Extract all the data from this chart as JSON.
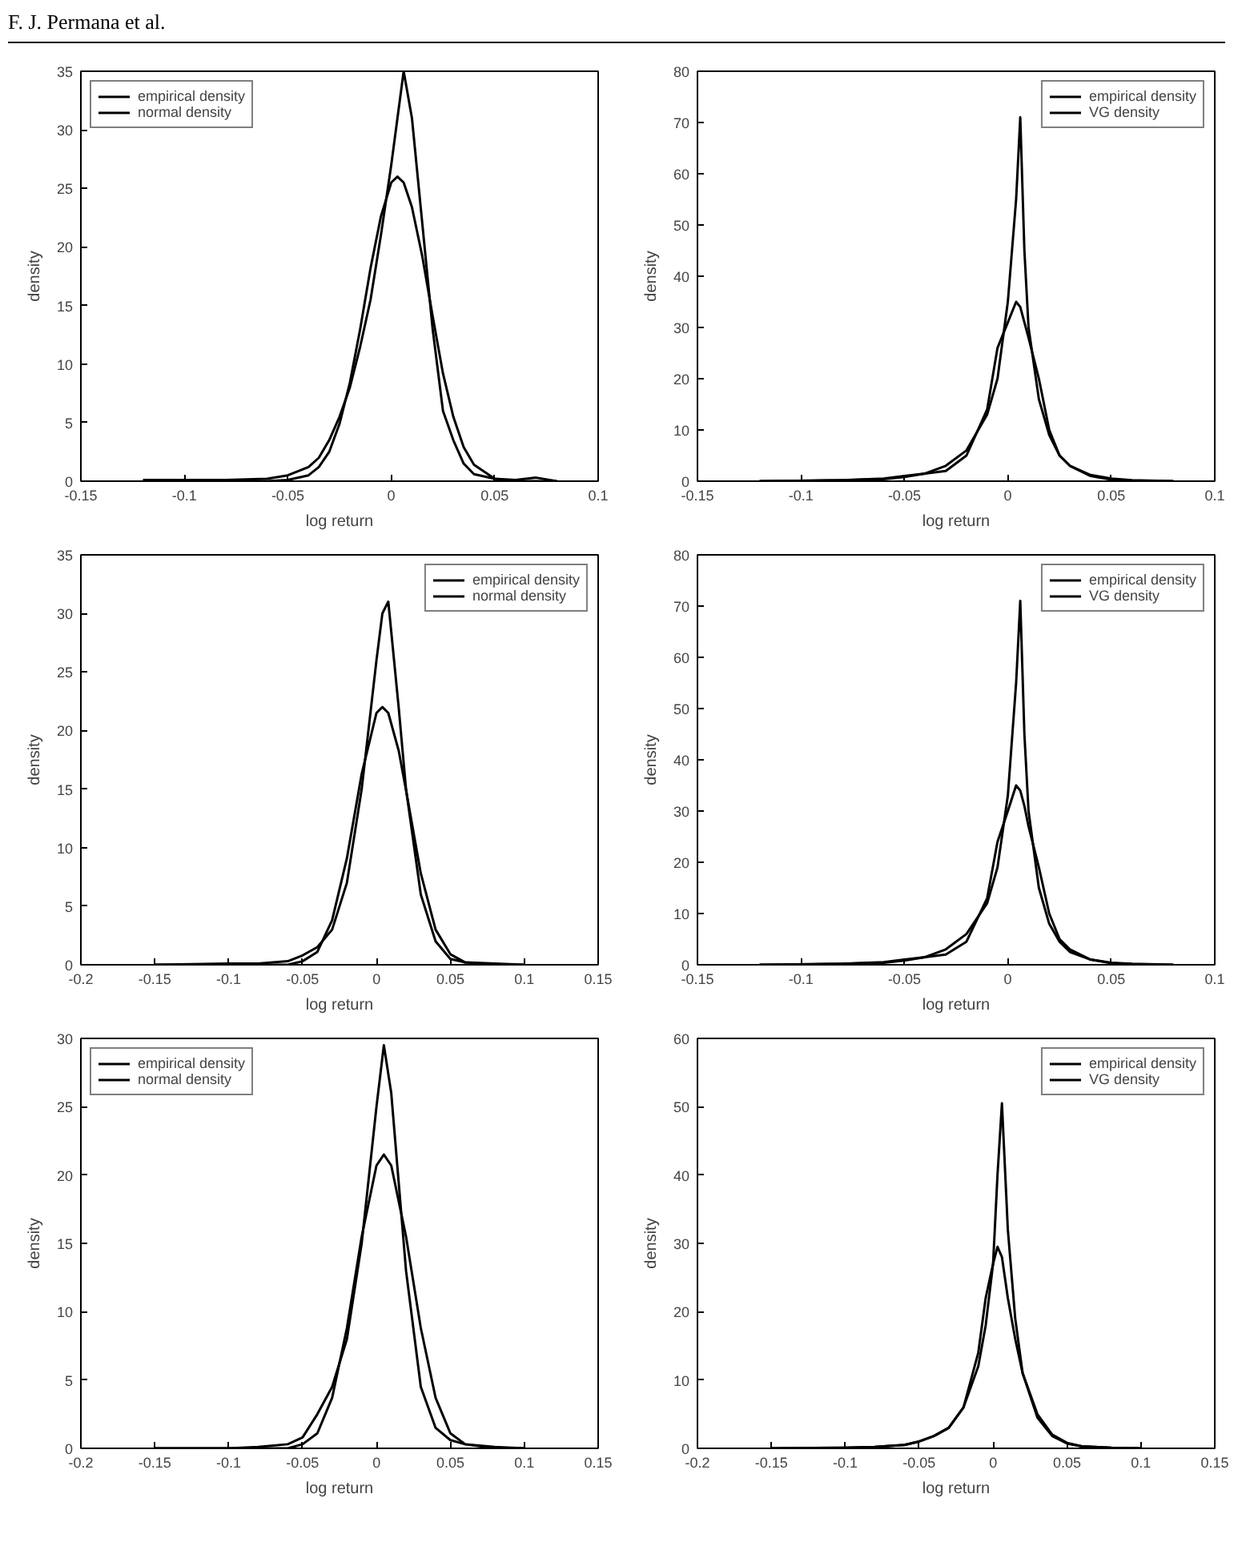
{
  "chart_data": [
    {
      "type": "line",
      "annotations": [
        "F. J. Permana et al."
      ],
      "xlabel": "log return",
      "ylabel": "density",
      "legend": "top left",
      "grid": false,
      "xlim": [
        -0.15,
        0.1
      ],
      "ylim": [
        0,
        35
      ],
      "xticks": [
        -0.15,
        -0.1,
        -0.05,
        0,
        0.05,
        0.1
      ],
      "yticks": [
        0,
        5,
        10,
        15,
        20,
        25,
        30,
        35
      ],
      "x": [
        -0.12,
        -0.08,
        -0.06,
        -0.05,
        -0.04,
        -0.035,
        -0.03,
        -0.025,
        -0.02,
        -0.015,
        -0.01,
        -0.005,
        0,
        0.003,
        0.006,
        0.01,
        0.015,
        0.02,
        0.025,
        0.03,
        0.035,
        0.04,
        0.05,
        0.06,
        0.07,
        0.08
      ],
      "series": [
        {
          "name": "empirical density",
          "color": "#000000",
          "values": [
            0.1,
            0.1,
            0.2,
            0.5,
            1.2,
            2,
            3.5,
            5.5,
            8,
            11.5,
            15.5,
            21,
            27,
            31,
            35,
            31,
            22,
            13,
            6,
            3.5,
            1.5,
            0.6,
            0.2,
            0.1,
            0.3,
            0
          ]
        },
        {
          "name": "normal density",
          "color": "#000000",
          "values": [
            0,
            0,
            0,
            0.1,
            0.5,
            1.2,
            2.5,
            4.9,
            8.4,
            13,
            18.2,
            22.6,
            25.5,
            26,
            25.5,
            23.4,
            19.2,
            14.1,
            9.2,
            5.5,
            2.9,
            1.4,
            0.2,
            0,
            0,
            0
          ]
        }
      ]
    },
    {
      "type": "line",
      "xlabel": "log return",
      "ylabel": "density",
      "legend": "top right",
      "grid": false,
      "xlim": [
        -0.15,
        0.1
      ],
      "ylim": [
        0,
        80
      ],
      "xticks": [
        -0.15,
        -0.1,
        -0.05,
        0,
        0.05,
        0.1
      ],
      "yticks": [
        0,
        10,
        20,
        30,
        40,
        50,
        60,
        70,
        80
      ],
      "x": [
        -0.12,
        -0.08,
        -0.06,
        -0.05,
        -0.04,
        -0.03,
        -0.02,
        -0.01,
        -0.005,
        0,
        0.004,
        0.006,
        0.008,
        0.01,
        0.015,
        0.02,
        0.025,
        0.03,
        0.04,
        0.05,
        0.06,
        0.08
      ],
      "series": [
        {
          "name": "empirical density",
          "color": "#000000",
          "values": [
            0,
            0.2,
            0.5,
            1,
            1.5,
            2,
            5,
            14,
            26,
            31,
            35,
            34,
            31,
            28,
            20,
            10,
            5,
            3,
            1,
            0.3,
            0.1,
            0
          ]
        },
        {
          "name": "VG density",
          "color": "#000000",
          "values": [
            0,
            0.2,
            0.4,
            0.8,
            1.5,
            3,
            6,
            13,
            20,
            35,
            55,
            71,
            45,
            30,
            16,
            9,
            5,
            3,
            1.2,
            0.5,
            0.2,
            0
          ]
        }
      ]
    },
    {
      "type": "line",
      "xlabel": "log return",
      "ylabel": "density",
      "legend": "top right",
      "grid": false,
      "xlim": [
        -0.2,
        0.15
      ],
      "ylim": [
        0,
        35
      ],
      "xticks": [
        -0.2,
        -0.15,
        -0.1,
        -0.05,
        0,
        0.05,
        0.1,
        0.15
      ],
      "yticks": [
        0,
        5,
        10,
        15,
        20,
        25,
        30,
        35
      ],
      "x": [
        -0.15,
        -0.1,
        -0.08,
        -0.06,
        -0.05,
        -0.04,
        -0.03,
        -0.02,
        -0.01,
        0,
        0.004,
        0.008,
        0.015,
        0.02,
        0.03,
        0.04,
        0.05,
        0.06,
        0.08,
        0.1
      ],
      "series": [
        {
          "name": "empirical density",
          "color": "#000000",
          "values": [
            0,
            0.1,
            0.1,
            0.3,
            0.8,
            1.5,
            3,
            7,
            15,
            26,
            30,
            31,
            22,
            15,
            6,
            2,
            0.5,
            0.2,
            0.1,
            0
          ]
        },
        {
          "name": "normal density",
          "color": "#000000",
          "values": [
            0,
            0,
            0,
            0,
            0.3,
            1.1,
            3.8,
            9.1,
            16.3,
            21.5,
            22,
            21.5,
            18.3,
            14.9,
            7.8,
            3,
            0.9,
            0.2,
            0,
            0
          ]
        }
      ]
    },
    {
      "type": "line",
      "xlabel": "log return",
      "ylabel": "density",
      "legend": "top right",
      "grid": false,
      "xlim": [
        -0.15,
        0.1
      ],
      "ylim": [
        0,
        80
      ],
      "xticks": [
        -0.15,
        -0.1,
        -0.05,
        0,
        0.05,
        0.1
      ],
      "yticks": [
        0,
        10,
        20,
        30,
        40,
        50,
        60,
        70,
        80
      ],
      "x": [
        -0.12,
        -0.08,
        -0.06,
        -0.05,
        -0.04,
        -0.03,
        -0.02,
        -0.01,
        -0.005,
        0,
        0.004,
        0.006,
        0.008,
        0.01,
        0.015,
        0.02,
        0.025,
        0.03,
        0.04,
        0.05,
        0.06,
        0.08
      ],
      "series": [
        {
          "name": "empirical density",
          "color": "#000000",
          "values": [
            0,
            0.2,
            0.5,
            1,
            1.5,
            2,
            4.5,
            13,
            24,
            30,
            35,
            34,
            31,
            27,
            19,
            10,
            5,
            3,
            1,
            0.3,
            0.1,
            0
          ]
        },
        {
          "name": "VG density",
          "color": "#000000",
          "values": [
            0,
            0.2,
            0.4,
            0.8,
            1.5,
            3,
            6,
            12,
            19,
            33,
            55,
            71,
            45,
            30,
            15,
            8,
            4.5,
            2.5,
            1,
            0.4,
            0.2,
            0
          ]
        }
      ]
    },
    {
      "type": "line",
      "xlabel": "log return",
      "ylabel": "density",
      "legend": "top left",
      "grid": false,
      "xlim": [
        -0.2,
        0.15
      ],
      "ylim": [
        0,
        30
      ],
      "xticks": [
        -0.2,
        -0.15,
        -0.1,
        -0.05,
        0,
        0.05,
        0.1,
        0.15
      ],
      "yticks": [
        0,
        5,
        10,
        15,
        20,
        25,
        30
      ],
      "x": [
        -0.15,
        -0.1,
        -0.08,
        -0.06,
        -0.05,
        -0.04,
        -0.03,
        -0.02,
        -0.01,
        0,
        0.005,
        0.01,
        0.02,
        0.03,
        0.04,
        0.05,
        0.06,
        0.08,
        0.1
      ],
      "series": [
        {
          "name": "empirical density",
          "color": "#000000",
          "values": [
            0,
            0,
            0.1,
            0.3,
            0.8,
            2.5,
            4.5,
            8,
            15,
            25,
            29.5,
            26,
            13,
            4.5,
            1.5,
            0.6,
            0.3,
            0.1,
            0
          ]
        },
        {
          "name": "normal density",
          "color": "#000000",
          "values": [
            0,
            0,
            0,
            0,
            0.3,
            1.1,
            3.7,
            8.8,
            15.5,
            20.7,
            21.5,
            20.7,
            15.5,
            8.8,
            3.7,
            1.1,
            0.3,
            0,
            0
          ]
        }
      ]
    },
    {
      "type": "line",
      "xlabel": "log return",
      "ylabel": "density",
      "legend": "top right",
      "grid": false,
      "xlim": [
        -0.2,
        0.15
      ],
      "ylim": [
        0,
        60
      ],
      "xticks": [
        -0.2,
        -0.15,
        -0.1,
        -0.05,
        0,
        0.05,
        0.1,
        0.15
      ],
      "yticks": [
        0,
        10,
        20,
        30,
        40,
        50,
        60
      ],
      "x": [
        -0.15,
        -0.1,
        -0.08,
        -0.06,
        -0.05,
        -0.04,
        -0.03,
        -0.02,
        -0.01,
        -0.005,
        0,
        0.003,
        0.006,
        0.01,
        0.015,
        0.02,
        0.03,
        0.04,
        0.05,
        0.06,
        0.08,
        0.1
      ],
      "series": [
        {
          "name": "empirical density",
          "color": "#000000",
          "values": [
            0,
            0.1,
            0.2,
            0.5,
            1,
            1.8,
            3,
            6,
            14,
            22,
            27,
            29.5,
            28,
            22,
            16,
            11,
            5,
            2,
            0.8,
            0.3,
            0.1,
            0
          ]
        },
        {
          "name": "VG density",
          "color": "#000000",
          "values": [
            0,
            0.1,
            0.2,
            0.5,
            1,
            1.8,
            3,
            6,
            12,
            18,
            27,
            40,
            50.5,
            32,
            19,
            11,
            4.5,
            1.8,
            0.7,
            0.3,
            0.1,
            0
          ]
        }
      ]
    }
  ]
}
